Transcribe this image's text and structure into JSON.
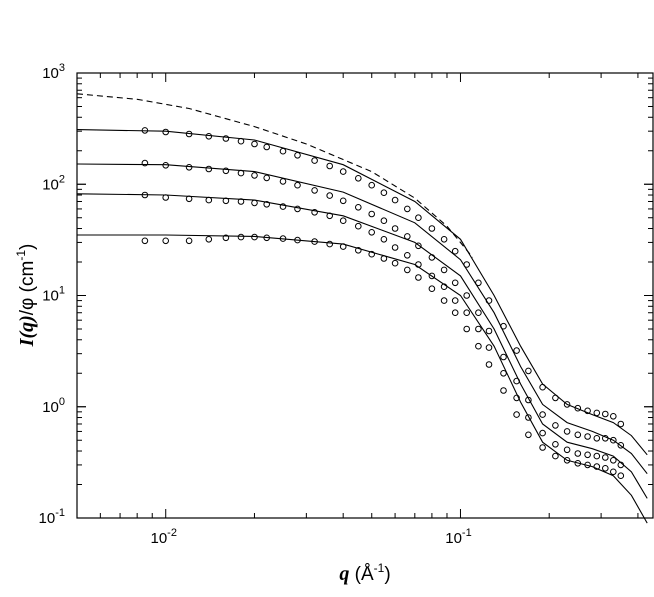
{
  "chart_data": {
    "type": "scatter",
    "title": "",
    "xscale": "log",
    "yscale": "log",
    "xlim": [
      0.005,
      0.45
    ],
    "ylim": [
      0.1,
      1000
    ],
    "grid": false,
    "x_ticks": [
      {
        "base": "10",
        "exp": "-2",
        "value": 0.01
      },
      {
        "base": "10",
        "exp": "-1",
        "value": 0.1
      }
    ],
    "y_ticks": [
      {
        "base": "10",
        "exp": "-1",
        "value": 0.1
      },
      {
        "base": "10",
        "exp": "0",
        "value": 1
      },
      {
        "base": "10",
        "exp": "1",
        "value": 10
      },
      {
        "base": "10",
        "exp": "2",
        "value": 100
      },
      {
        "base": "10",
        "exp": "3",
        "value": 1000
      }
    ],
    "xlabel": {
      "symbol": "q",
      "unit_open": " (Å",
      "unit_exp": "-1",
      "unit_close": ")"
    },
    "ylabel": {
      "symbol": "I(q)",
      "rest": "/φ (cm",
      "unit_exp": "-1",
      "unit_close": ")"
    },
    "dashed_curve": {
      "x": [
        0.005,
        0.008,
        0.012,
        0.02,
        0.03,
        0.05,
        0.07,
        0.09,
        0.11
      ],
      "y": [
        650,
        580,
        480,
        330,
        230,
        130,
        75,
        42,
        22
      ]
    },
    "series": [
      {
        "fit": {
          "x": [
            0.005,
            0.01,
            0.02,
            0.04,
            0.07,
            0.1,
            0.13,
            0.16,
            0.19,
            0.23,
            0.28,
            0.33,
            0.38,
            0.43
          ],
          "y": [
            310,
            300,
            250,
            150,
            70,
            32,
            10,
            3.5,
            1.6,
            1.05,
            0.85,
            0.72,
            0.55,
            0.37
          ]
        },
        "points": {
          "x": [
            0.0085,
            0.01,
            0.012,
            0.014,
            0.016,
            0.018,
            0.02,
            0.022,
            0.025,
            0.028,
            0.032,
            0.036,
            0.04,
            0.045,
            0.05,
            0.055,
            0.06,
            0.066,
            0.072,
            0.08,
            0.088,
            0.096,
            0.105,
            0.115,
            0.125,
            0.14,
            0.155,
            0.17,
            0.19,
            0.21,
            0.23,
            0.25,
            0.27,
            0.29,
            0.31,
            0.33,
            0.35
          ],
          "y": [
            305,
            295,
            283,
            270,
            258,
            244,
            230,
            216,
            198,
            182,
            163,
            146,
            130,
            113,
            98,
            84,
            72,
            60,
            50,
            40,
            32,
            25,
            19,
            13,
            9,
            5.3,
            3.2,
            2.1,
            1.5,
            1.2,
            1.05,
            0.97,
            0.92,
            0.88,
            0.86,
            0.82,
            0.7
          ]
        }
      },
      {
        "fit": {
          "x": [
            0.005,
            0.01,
            0.02,
            0.04,
            0.07,
            0.1,
            0.13,
            0.16,
            0.19,
            0.23,
            0.28,
            0.33,
            0.38,
            0.43
          ],
          "y": [
            152,
            150,
            130,
            85,
            45,
            21,
            7,
            2.3,
            1.05,
            0.72,
            0.6,
            0.5,
            0.38,
            0.25
          ]
        },
        "points": {
          "x": [
            0.0085,
            0.01,
            0.012,
            0.014,
            0.016,
            0.018,
            0.02,
            0.022,
            0.025,
            0.028,
            0.032,
            0.036,
            0.04,
            0.045,
            0.05,
            0.055,
            0.06,
            0.066,
            0.072,
            0.08,
            0.088,
            0.096,
            0.105,
            0.115,
            0.125,
            0.14,
            0.155,
            0.17,
            0.19,
            0.21,
            0.23,
            0.25,
            0.27,
            0.29,
            0.31,
            0.33,
            0.35
          ],
          "y": [
            155,
            148,
            142,
            137,
            132,
            126,
            120,
            114,
            106,
            98,
            88,
            79,
            71,
            62,
            54,
            47,
            40,
            34,
            28,
            22,
            17,
            13,
            10,
            7,
            4.8,
            2.8,
            1.7,
            1.15,
            0.85,
            0.68,
            0.6,
            0.56,
            0.54,
            0.52,
            0.52,
            0.5,
            0.45
          ]
        }
      },
      {
        "fit": {
          "x": [
            0.005,
            0.01,
            0.02,
            0.04,
            0.07,
            0.1,
            0.13,
            0.16,
            0.19,
            0.23,
            0.28,
            0.33,
            0.38,
            0.43
          ],
          "y": [
            82,
            80,
            72,
            52,
            30,
            15,
            5,
            1.6,
            0.7,
            0.48,
            0.42,
            0.36,
            0.26,
            0.15
          ]
        },
        "points": {
          "x": [
            0.0085,
            0.01,
            0.012,
            0.014,
            0.016,
            0.018,
            0.02,
            0.022,
            0.025,
            0.028,
            0.032,
            0.036,
            0.04,
            0.045,
            0.05,
            0.055,
            0.06,
            0.066,
            0.072,
            0.08,
            0.088,
            0.096,
            0.105,
            0.115,
            0.125,
            0.14,
            0.155,
            0.17,
            0.19,
            0.21,
            0.23,
            0.25,
            0.27,
            0.29,
            0.31,
            0.33,
            0.35
          ],
          "y": [
            80,
            76,
            74,
            72,
            71,
            70,
            68,
            66,
            63,
            60,
            56,
            52,
            47,
            42,
            37,
            32,
            27,
            23,
            19,
            15,
            12,
            9,
            7,
            5,
            3.4,
            2.0,
            1.2,
            0.8,
            0.58,
            0.46,
            0.41,
            0.38,
            0.37,
            0.36,
            0.35,
            0.33,
            0.3
          ]
        }
      },
      {
        "fit": {
          "x": [
            0.005,
            0.01,
            0.02,
            0.04,
            0.07,
            0.1,
            0.13,
            0.16,
            0.19,
            0.23,
            0.28,
            0.33,
            0.38,
            0.43
          ],
          "y": [
            35,
            35,
            34,
            29,
            19,
            10,
            3.5,
            1.1,
            0.48,
            0.33,
            0.29,
            0.24,
            0.16,
            0.09
          ]
        },
        "points": {
          "x": [
            0.0085,
            0.01,
            0.012,
            0.014,
            0.016,
            0.018,
            0.02,
            0.022,
            0.025,
            0.028,
            0.032,
            0.036,
            0.04,
            0.045,
            0.05,
            0.055,
            0.06,
            0.066,
            0.072,
            0.08,
            0.088,
            0.096,
            0.105,
            0.115,
            0.125,
            0.14,
            0.155,
            0.17,
            0.19,
            0.21,
            0.23,
            0.25,
            0.27,
            0.29,
            0.31,
            0.33,
            0.35
          ],
          "y": [
            31,
            31,
            31,
            32,
            33,
            33.5,
            33.5,
            33,
            32.5,
            31.5,
            30.5,
            29,
            27.5,
            25.5,
            23.5,
            21.5,
            19.5,
            17,
            14.5,
            11.5,
            9,
            7,
            5,
            3.5,
            2.4,
            1.4,
            0.85,
            0.56,
            0.43,
            0.36,
            0.33,
            0.31,
            0.3,
            0.29,
            0.28,
            0.26,
            0.24
          ]
        }
      }
    ]
  }
}
